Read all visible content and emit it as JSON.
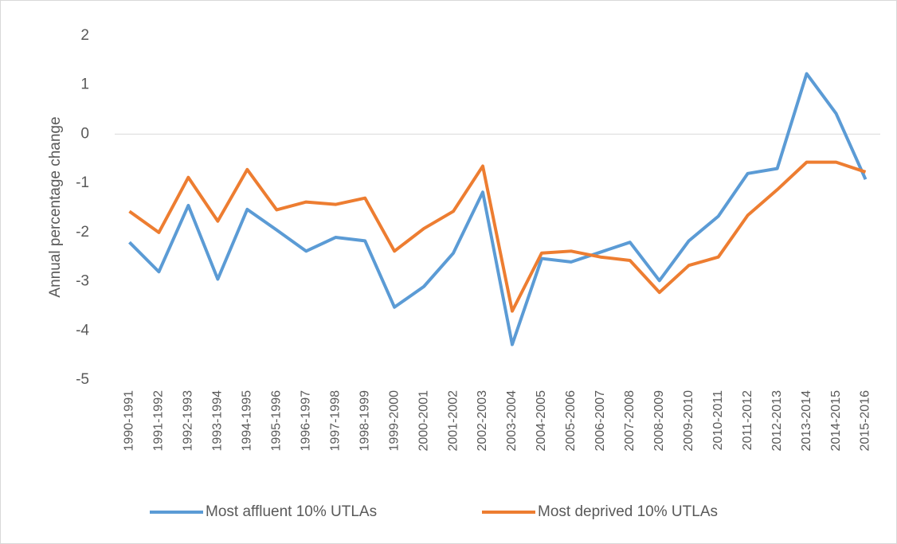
{
  "chart_data": {
    "type": "line",
    "y_label": "Annual percentage change",
    "categories": [
      "1990-1991",
      "1991-1992",
      "1992-1993",
      "1993-1994",
      "1994-1995",
      "1995-1996",
      "1996-1997",
      "1997-1998",
      "1998-1999",
      "1999-2000",
      "2000-2001",
      "2001-2002",
      "2002-2003",
      "2003-2004",
      "2004-2005",
      "2005-2006",
      "2006-2007",
      "2007-2008",
      "2008-2009",
      "2009-2010",
      "2010-2011",
      "2011-2012",
      "2012-2013",
      "2013-2014",
      "2014-2015",
      "2015-2016"
    ],
    "series": [
      {
        "name": "Most affluent 10% UTLAs",
        "color": "#5b9bd5",
        "values": [
          -2.2,
          -2.8,
          -1.45,
          -2.95,
          -1.53,
          -1.95,
          -2.38,
          -2.1,
          -2.17,
          -3.52,
          -3.1,
          -2.42,
          -1.18,
          -4.28,
          -2.53,
          -2.6,
          -2.4,
          -2.2,
          -2.98,
          -2.17,
          -1.67,
          -0.8,
          -0.7,
          1.23,
          0.42,
          -0.92
        ]
      },
      {
        "name": "Most deprived 10% UTLAs",
        "color": "#ed7d31",
        "values": [
          -1.57,
          -2.0,
          -0.88,
          -1.77,
          -0.72,
          -1.54,
          -1.38,
          -1.43,
          -1.3,
          -2.38,
          -1.92,
          -1.57,
          -0.65,
          -3.6,
          -2.42,
          -2.38,
          -2.5,
          -2.57,
          -3.22,
          -2.67,
          -2.5,
          -1.65,
          -1.13,
          -0.57,
          -0.57,
          -0.77
        ]
      }
    ],
    "ylim": [
      -5,
      2
    ],
    "yticks": [
      2,
      1,
      0,
      -1,
      -2,
      -3,
      -4,
      -5
    ],
    "grid": false,
    "legend": "bottom"
  }
}
